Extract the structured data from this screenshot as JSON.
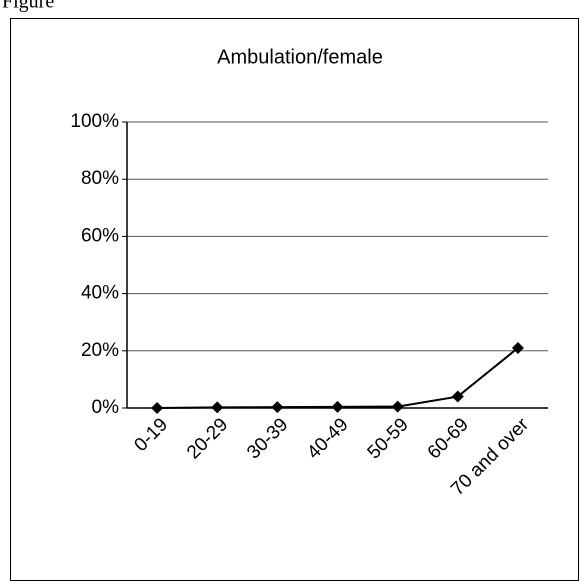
{
  "figure_label": "Figure",
  "chart_data": {
    "type": "line",
    "title": "Ambulation/female",
    "categories": [
      "0-19",
      "20-29",
      "30-39",
      "40-49",
      "50-59",
      "60-69",
      "70 and over"
    ],
    "series": [
      {
        "name": "Ambulation/female",
        "color": "#000000",
        "values": [
          0,
          0.2,
          0.3,
          0.4,
          0.5,
          4,
          21
        ]
      }
    ],
    "ylim": [
      0,
      100
    ],
    "yticks": [
      {
        "value": 0,
        "label": "0%"
      },
      {
        "value": 20,
        "label": "20%"
      },
      {
        "value": 40,
        "label": "40%"
      },
      {
        "value": 60,
        "label": "60%"
      },
      {
        "value": 80,
        "label": "80%"
      },
      {
        "value": 100,
        "label": "100%"
      }
    ],
    "grid": true
  }
}
